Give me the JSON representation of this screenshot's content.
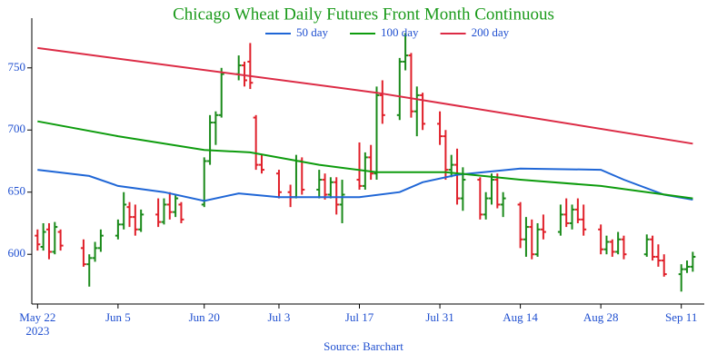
{
  "chart_data": {
    "type": "ohlc",
    "title": "Chicago Wheat Daily Futures Front Month Continuous",
    "title_color": "#1a9a1a",
    "source": "Source: Barchart",
    "increasing_color": "#1a8a1a",
    "decreasing_color": "#e0202a",
    "x": [
      "2023-05-22",
      "2023-05-23",
      "2023-05-24",
      "2023-05-25",
      "2023-05-26",
      "2023-05-30",
      "2023-05-31",
      "2023-06-01",
      "2023-06-02",
      "2023-06-05",
      "2023-06-06",
      "2023-06-07",
      "2023-06-08",
      "2023-06-09",
      "2023-06-12",
      "2023-06-13",
      "2023-06-14",
      "2023-06-15",
      "2023-06-16",
      "2023-06-20",
      "2023-06-21",
      "2023-06-22",
      "2023-06-23",
      "2023-06-26",
      "2023-06-27",
      "2023-06-28",
      "2023-06-29",
      "2023-06-30",
      "2023-07-03",
      "2023-07-05",
      "2023-07-06",
      "2023-07-07",
      "2023-07-10",
      "2023-07-11",
      "2023-07-12",
      "2023-07-13",
      "2023-07-14",
      "2023-07-17",
      "2023-07-18",
      "2023-07-19",
      "2023-07-20",
      "2023-07-21",
      "2023-07-24",
      "2023-07-25",
      "2023-07-26",
      "2023-07-27",
      "2023-07-28",
      "2023-07-31",
      "2023-08-01",
      "2023-08-02",
      "2023-08-03",
      "2023-08-04",
      "2023-08-07",
      "2023-08-08",
      "2023-08-09",
      "2023-08-10",
      "2023-08-11",
      "2023-08-14",
      "2023-08-15",
      "2023-08-16",
      "2023-08-17",
      "2023-08-18",
      "2023-08-21",
      "2023-08-22",
      "2023-08-23",
      "2023-08-24",
      "2023-08-25",
      "2023-08-28",
      "2023-08-29",
      "2023-08-30",
      "2023-08-31",
      "2023-09-01",
      "2023-09-05",
      "2023-09-06",
      "2023-09-07",
      "2023-09-08",
      "2023-09-11",
      "2023-09-12",
      "2023-09-13"
    ],
    "open": [
      615,
      606,
      620,
      602,
      618,
      605,
      592,
      597,
      605,
      615,
      624,
      638,
      630,
      620,
      632,
      626,
      640,
      634,
      640,
      640,
      675,
      706,
      712,
      745,
      752,
      755,
      710,
      672,
      665,
      650,
      646,
      675,
      652,
      660,
      648,
      658,
      640,
      660,
      655,
      678,
      665,
      728,
      712,
      755,
      760,
      715,
      728,
      705,
      695,
      668,
      672,
      645,
      660,
      632,
      645,
      660,
      640,
      640,
      612,
      622,
      600,
      620,
      618,
      632,
      625,
      636,
      628,
      620,
      604,
      610,
      602,
      612,
      600,
      612,
      598,
      595,
      584,
      588,
      590
    ],
    "high": [
      620,
      625,
      625,
      626,
      620,
      612,
      600,
      610,
      620,
      628,
      650,
      642,
      640,
      636,
      645,
      645,
      650,
      648,
      642,
      678,
      712,
      715,
      750,
      760,
      755,
      770,
      712,
      680,
      668,
      656,
      680,
      678,
      668,
      665,
      662,
      662,
      660,
      690,
      682,
      688,
      735,
      740,
      758,
      778,
      762,
      735,
      730,
      715,
      700,
      680,
      685,
      670,
      662,
      650,
      665,
      665,
      650,
      642,
      630,
      628,
      625,
      632,
      640,
      645,
      640,
      645,
      640,
      624,
      615,
      612,
      618,
      615,
      616,
      615,
      608,
      600,
      592,
      595,
      602
    ],
    "low": [
      603,
      603,
      596,
      600,
      603,
      590,
      574,
      594,
      602,
      612,
      620,
      622,
      615,
      618,
      622,
      624,
      628,
      630,
      625,
      638,
      672,
      688,
      710,
      740,
      735,
      733,
      668,
      665,
      645,
      638,
      645,
      648,
      645,
      644,
      645,
      632,
      625,
      652,
      652,
      660,
      660,
      705,
      708,
      748,
      710,
      695,
      700,
      688,
      660,
      662,
      640,
      635,
      628,
      628,
      640,
      637,
      630,
      605,
      598,
      596,
      598,
      612,
      615,
      622,
      620,
      625,
      615,
      600,
      600,
      598,
      600,
      596,
      598,
      595,
      590,
      582,
      570,
      585,
      586
    ],
    "close": [
      608,
      618,
      602,
      622,
      607,
      592,
      597,
      605,
      615,
      624,
      640,
      630,
      620,
      632,
      626,
      640,
      634,
      645,
      628,
      675,
      706,
      712,
      745,
      752,
      740,
      738,
      672,
      668,
      650,
      646,
      675,
      652,
      660,
      648,
      658,
      640,
      648,
      655,
      678,
      665,
      728,
      712,
      755,
      760,
      715,
      728,
      705,
      695,
      668,
      672,
      645,
      660,
      632,
      645,
      660,
      640,
      645,
      612,
      622,
      600,
      620,
      618,
      632,
      625,
      636,
      628,
      620,
      604,
      610,
      602,
      612,
      600,
      612,
      598,
      595,
      584,
      588,
      590,
      598
    ],
    "series": [
      {
        "name": "50 day",
        "color": "#1f66d6",
        "x": [
          "2023-05-22",
          "2023-05-31",
          "2023-06-05",
          "2023-06-13",
          "2023-06-20",
          "2023-06-26",
          "2023-07-03",
          "2023-07-17",
          "2023-07-24",
          "2023-07-28",
          "2023-08-03",
          "2023-08-14",
          "2023-08-28",
          "2023-09-01",
          "2023-09-08",
          "2023-09-13"
        ],
        "values": [
          668,
          663,
          655,
          650,
          643,
          649,
          646,
          646,
          650,
          658,
          664,
          669,
          668,
          660,
          648,
          644
        ]
      },
      {
        "name": "100 day",
        "color": "#0e9c0e",
        "x": [
          "2023-05-22",
          "2023-06-05",
          "2023-06-20",
          "2023-06-28",
          "2023-07-10",
          "2023-07-20",
          "2023-08-01",
          "2023-08-14",
          "2023-08-28",
          "2023-09-05",
          "2023-09-13"
        ],
        "values": [
          707,
          695,
          684,
          682,
          672,
          666,
          666,
          660,
          655,
          650,
          645
        ]
      },
      {
        "name": "200 day",
        "color": "#dc2b45",
        "x": [
          "2023-05-22",
          "2023-07-20",
          "2023-09-13"
        ],
        "values": [
          766,
          730,
          689
        ]
      }
    ],
    "xlim": [
      "2023-05-21",
      "2023-09-15"
    ],
    "xticks": [
      {
        "value": "2023-05-22",
        "label": "May 22\n2023"
      },
      {
        "value": "2023-06-05",
        "label": "Jun 5"
      },
      {
        "value": "2023-06-20",
        "label": "Jun 20"
      },
      {
        "value": "2023-07-03",
        "label": "Jul 3"
      },
      {
        "value": "2023-07-17",
        "label": "Jul 17"
      },
      {
        "value": "2023-07-31",
        "label": "Jul 31"
      },
      {
        "value": "2023-08-14",
        "label": "Aug 14"
      },
      {
        "value": "2023-08-28",
        "label": "Aug 28"
      },
      {
        "value": "2023-09-11",
        "label": "Sep 11"
      }
    ],
    "ylim": [
      560,
      790
    ],
    "yticks": [
      600,
      650,
      700,
      750
    ],
    "grid": false
  }
}
